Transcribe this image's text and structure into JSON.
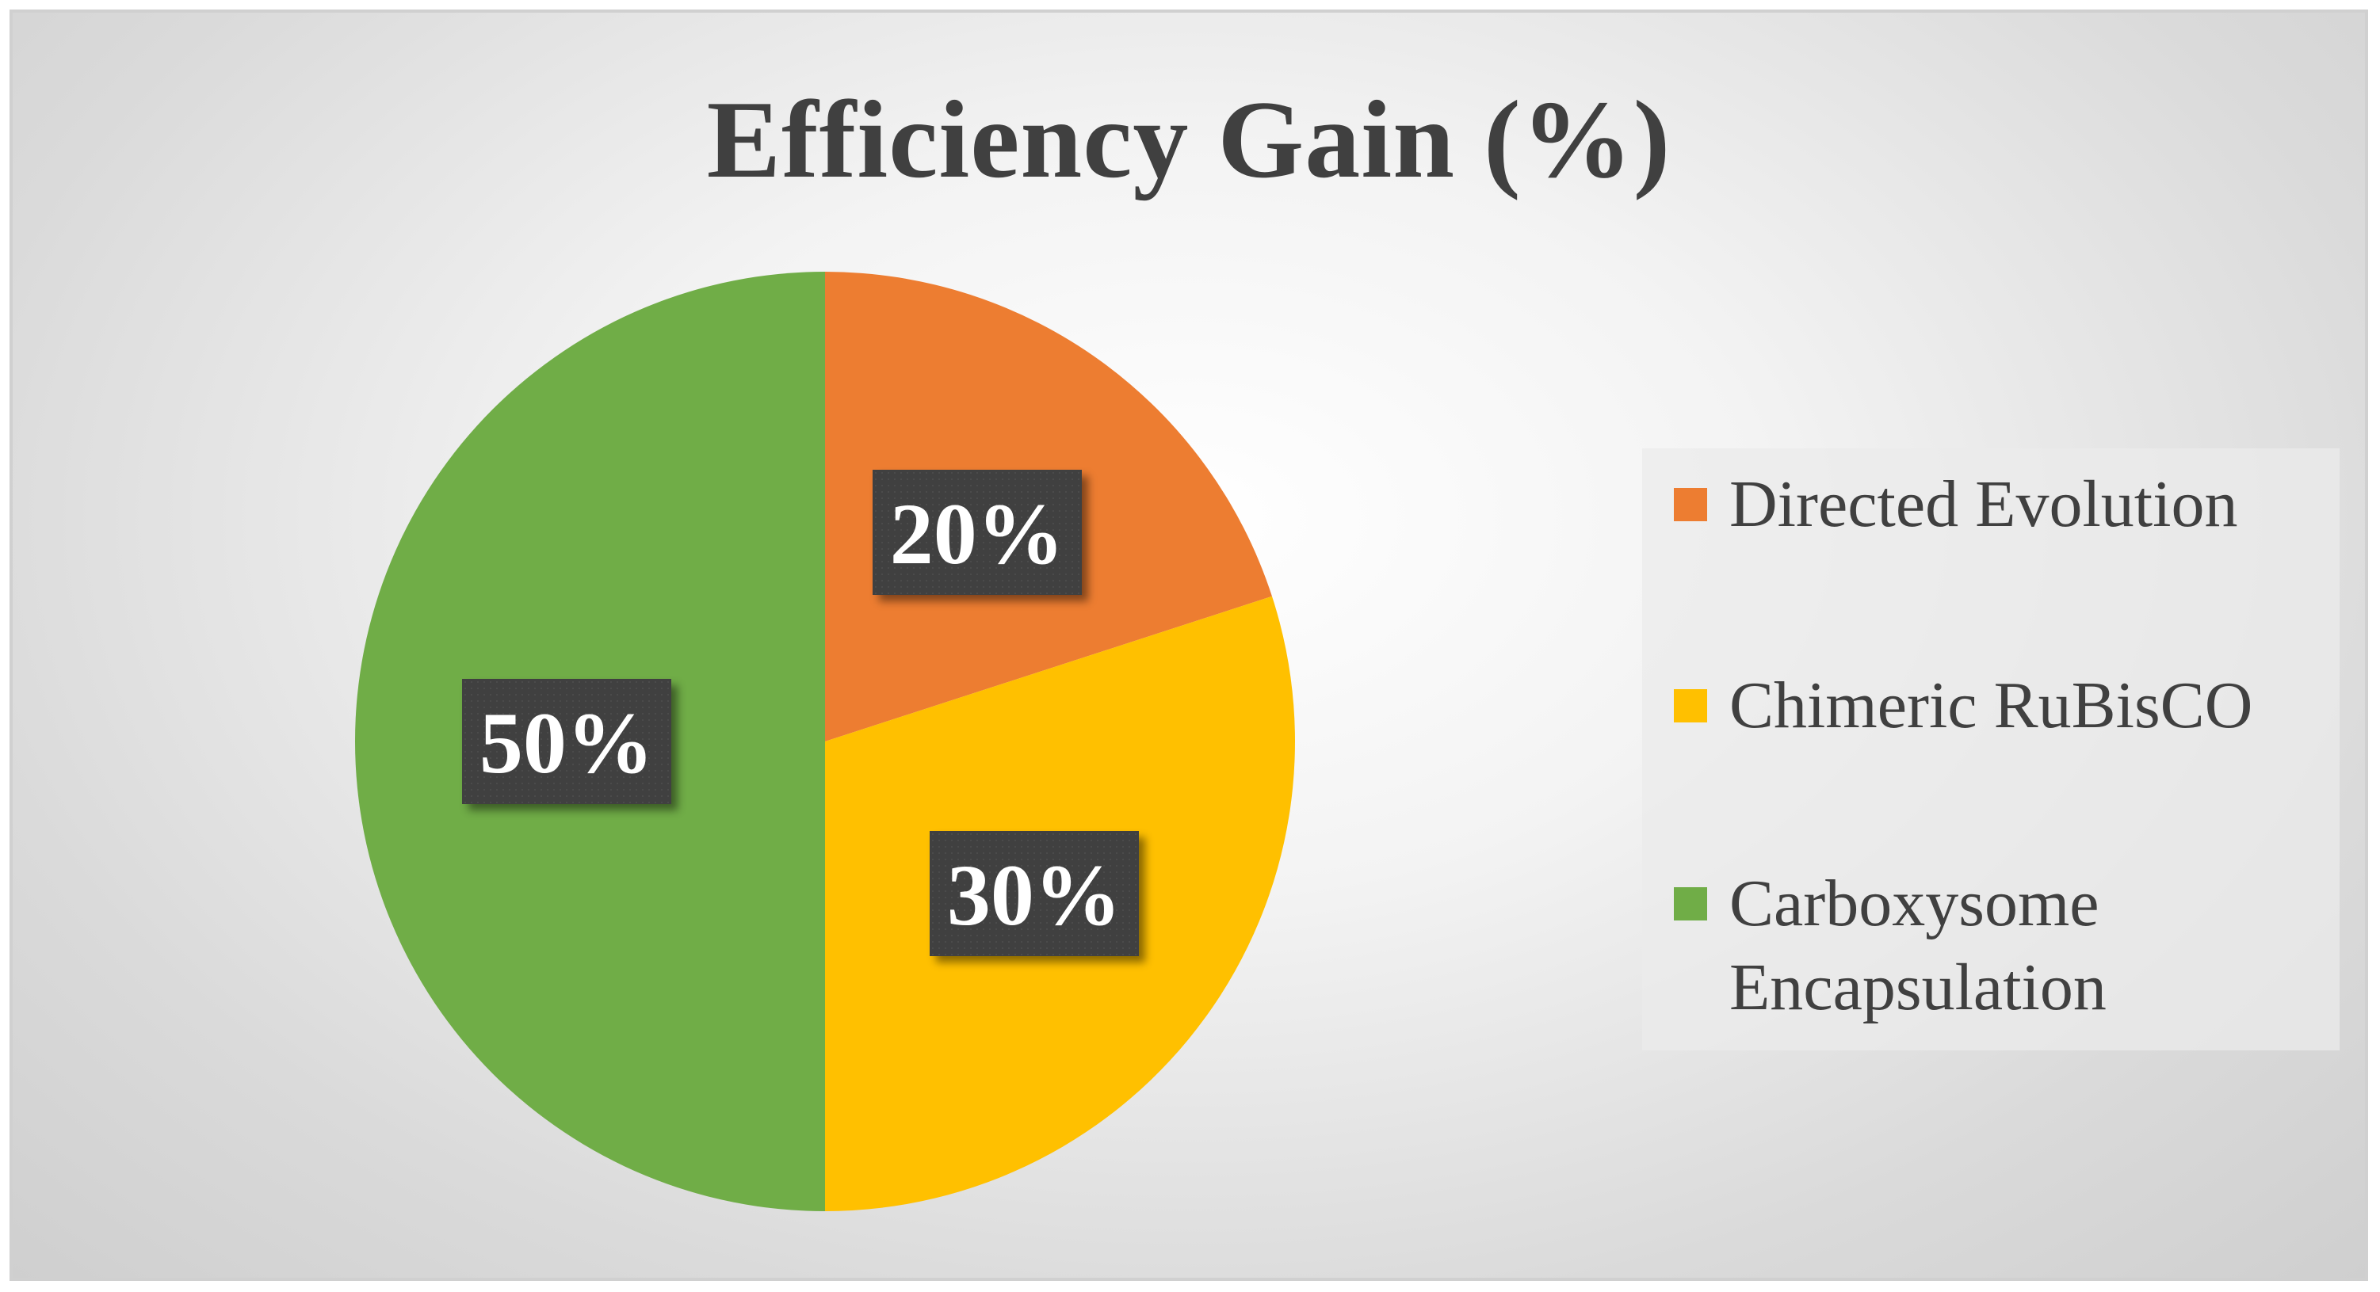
{
  "chart_data": {
    "type": "pie",
    "title": "Efficiency Gain (%)",
    "categories": [
      "Directed Evolution",
      "Chimeric RuBisCO",
      "Carboxysome Encapsulation"
    ],
    "values": [
      20,
      30,
      50
    ],
    "data_labels": [
      "20%",
      "30%",
      "50%"
    ],
    "colors": [
      "#ED7D31",
      "#FFC000",
      "#70AD47"
    ],
    "legend_position": "right"
  }
}
